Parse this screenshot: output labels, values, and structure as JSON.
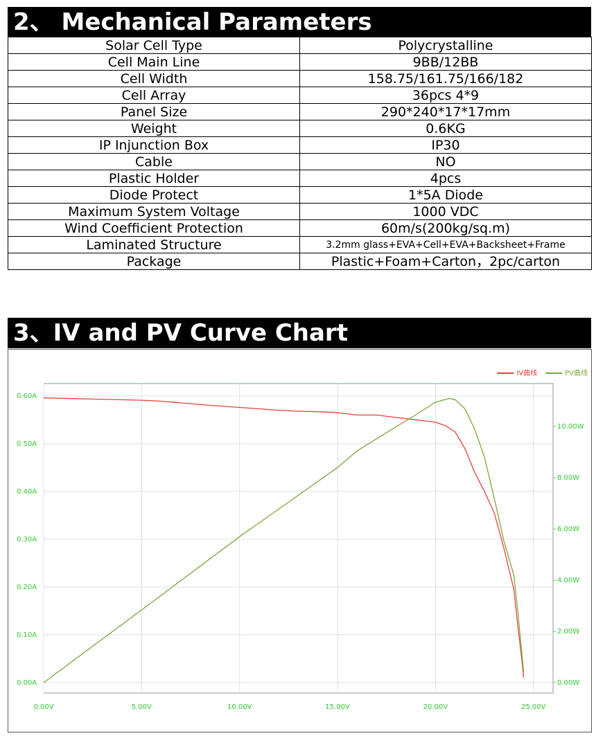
{
  "section2": {
    "title": "2、 Mechanical Parameters",
    "table": {
      "rows": [
        [
          "Solar Cell Type",
          "Polycrystalline"
        ],
        [
          "Cell Main Line",
          "9BB/12BB"
        ],
        [
          "Cell Width",
          "158.75/161.75/166/182"
        ],
        [
          "Cell Array",
          "36pcs 4*9"
        ],
        [
          "Panel Size",
          "290*240*17*17mm"
        ],
        [
          "Weight",
          "0.6KG"
        ],
        [
          "IP Injunction Box",
          "IP30"
        ],
        [
          "Cable",
          "NO"
        ],
        [
          "Plastic Holder",
          "4pcs"
        ],
        [
          "Diode Protect",
          "1*5A Diode"
        ],
        [
          "Maximum System Voltage",
          "1000 VDC"
        ],
        [
          "Wind Coefficient Protection",
          "60m/s(200kg/sq.m)"
        ],
        [
          "Laminated Structure",
          "3.2mm glass+EVA+Cell+EVA+Backsheet+Frame"
        ],
        [
          "Package",
          "Plastic+Foam+Carton，2pc/carton"
        ]
      ]
    }
  },
  "section3": {
    "title": "3、IV and PV Curve Chart"
  },
  "chart_data": {
    "type": "line",
    "grid": true,
    "legend": "top-right",
    "xlim": [
      0,
      26
    ],
    "ylim": [
      -0.022,
      0.626
    ],
    "y2lim": [
      -0.405,
      11.68
    ],
    "xticks": [
      {
        "value": 0,
        "label": "0.00V"
      },
      {
        "value": 5,
        "label": "5.00V"
      },
      {
        "value": 10,
        "label": "10.00V"
      },
      {
        "value": 15,
        "label": "15.00V"
      },
      {
        "value": 20,
        "label": "20.00V"
      },
      {
        "value": 25,
        "label": "25.00V"
      }
    ],
    "yticks": [
      {
        "value": 0,
        "label": "0.00A"
      },
      {
        "value": 0.1,
        "label": "0.10A"
      },
      {
        "value": 0.2,
        "label": "0.20A"
      },
      {
        "value": 0.3,
        "label": "0.30A"
      },
      {
        "value": 0.4,
        "label": "0.40A"
      },
      {
        "value": 0.5,
        "label": "0.50A"
      },
      {
        "value": 0.6,
        "label": "0.60A"
      }
    ],
    "y2ticks": [
      {
        "value": 0,
        "label": "0.00W"
      },
      {
        "value": 2,
        "label": "2.00W"
      },
      {
        "value": 4,
        "label": "4.00W"
      },
      {
        "value": 6,
        "label": "6.00W"
      },
      {
        "value": 8,
        "label": "8.00W"
      },
      {
        "value": 10,
        "label": "10.00W"
      }
    ],
    "series": [
      {
        "name": "IV曲线",
        "color": "#e8403a",
        "x": [
          0,
          2,
          5,
          6,
          8,
          10,
          12,
          13,
          14,
          15,
          16,
          17,
          18,
          19,
          20,
          20.5,
          21,
          21.5,
          22,
          22.5,
          23,
          23.5,
          24,
          24.2,
          24.4,
          24.5
        ],
        "values": [
          0.596,
          0.594,
          0.591,
          0.589,
          0.582,
          0.576,
          0.57,
          0.568,
          0.567,
          0.565,
          0.56,
          0.56,
          0.555,
          0.55,
          0.545,
          0.538,
          0.525,
          0.49,
          0.44,
          0.4,
          0.355,
          0.28,
          0.195,
          0.12,
          0.05,
          0.01
        ]
      },
      {
        "name": "PV曲线",
        "color": "#7aa83a",
        "axis": "y2",
        "x": [
          0,
          5,
          10,
          15,
          16,
          18,
          19,
          20,
          20.7,
          21,
          21.5,
          22,
          22.5,
          23,
          23.5,
          24,
          24.2,
          24.4,
          24.5
        ],
        "values": [
          0,
          2.84,
          5.7,
          8.4,
          9.05,
          10,
          10.46,
          10.95,
          11.1,
          11.05,
          10.7,
          9.9,
          8.8,
          7.2,
          5.5,
          4.2,
          2.8,
          1.2,
          0.4
        ]
      }
    ]
  }
}
